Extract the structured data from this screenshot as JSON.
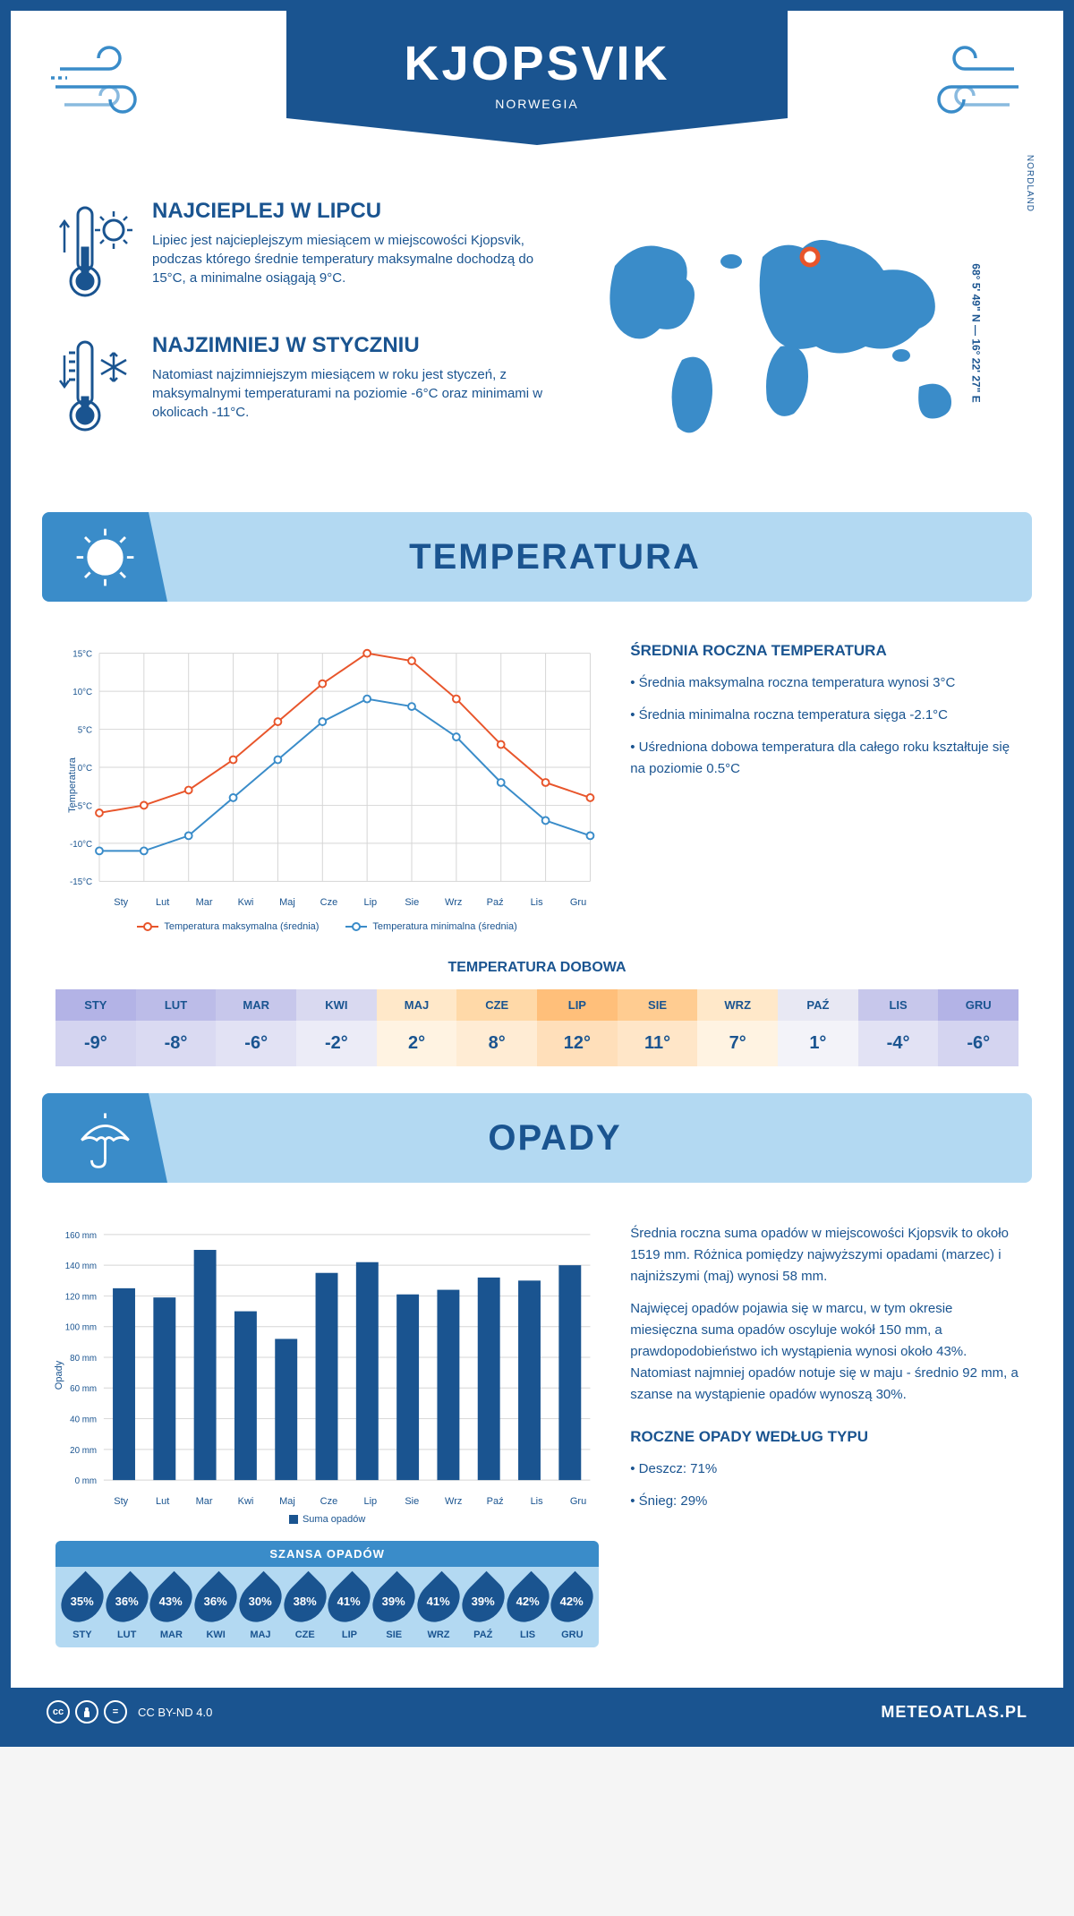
{
  "header": {
    "title": "KJOPSVIK",
    "country": "NORWEGIA",
    "coordinates": "68° 5' 49\" N — 16° 22' 27\" E",
    "region": "NORDLAND"
  },
  "facts": {
    "warm": {
      "title": "NAJCIEPLEJ W LIPCU",
      "text": "Lipiec jest najcieplejszym miesiącem w miejscowości Kjopsvik, podczas którego średnie temperatury maksymalne dochodzą do 15°C, a minimalne osiągają 9°C."
    },
    "cold": {
      "title": "NAJZIMNIEJ W STYCZNIU",
      "text": "Natomiast najzimniejszym miesiącem w roku jest styczeń, z maksymalnymi temperaturami na poziomie -6°C oraz minimami w okolicach -11°C."
    }
  },
  "sections": {
    "temperature": "TEMPERATURA",
    "precipitation": "OPADY"
  },
  "temp_chart": {
    "type": "line",
    "y_axis_label": "Temperatura",
    "months": [
      "Sty",
      "Lut",
      "Mar",
      "Kwi",
      "Maj",
      "Cze",
      "Lip",
      "Sie",
      "Wrz",
      "Paź",
      "Lis",
      "Gru"
    ],
    "max_series": [
      -6,
      -5,
      -3,
      1,
      6,
      11,
      15,
      14,
      9,
      3,
      -2,
      -4
    ],
    "min_series": [
      -11,
      -11,
      -9,
      -4,
      1,
      6,
      9,
      8,
      4,
      -2,
      -7,
      -9
    ],
    "ylim": [
      -15,
      15
    ],
    "ytick_step": 5,
    "max_color": "#e8552b",
    "min_color": "#3a8cc9",
    "grid_color": "#d5d5d5",
    "legend_max": "Temperatura maksymalna (średnia)",
    "legend_min": "Temperatura minimalna (średnia)"
  },
  "temp_summary": {
    "title": "ŚREDNIA ROCZNA TEMPERATURA",
    "items": [
      "Średnia maksymalna roczna temperatura wynosi 3°C",
      "Średnia minimalna roczna temperatura sięga -2.1°C",
      "Uśredniona dobowa temperatura dla całego roku kształtuje się na poziomie 0.5°C"
    ]
  },
  "daily_temp": {
    "title": "TEMPERATURA DOBOWA",
    "months": [
      "STY",
      "LUT",
      "MAR",
      "KWI",
      "MAJ",
      "CZE",
      "LIP",
      "SIE",
      "WRZ",
      "PAŹ",
      "LIS",
      "GRU"
    ],
    "values": [
      "-9°",
      "-8°",
      "-6°",
      "-2°",
      "2°",
      "8°",
      "12°",
      "11°",
      "7°",
      "1°",
      "-4°",
      "-6°"
    ],
    "header_colors": [
      "#b3b3e6",
      "#bcbce8",
      "#c7c7eb",
      "#d9d9f0",
      "#ffe8c9",
      "#ffd9a8",
      "#ffbf7a",
      "#ffcc91",
      "#ffe8c9",
      "#e8e8f3",
      "#c7c7eb",
      "#b3b3e6"
    ],
    "value_colors": [
      "#d4d4f0",
      "#dadaf2",
      "#e2e2f4",
      "#ececf7",
      "#fff3e2",
      "#ffecd4",
      "#ffdfba",
      "#ffe6c8",
      "#fff3e2",
      "#f3f3f9",
      "#e2e2f4",
      "#d4d4f0"
    ],
    "text_color": "#1a5490"
  },
  "precip_chart": {
    "type": "bar",
    "y_axis_label": "Opady",
    "months": [
      "Sty",
      "Lut",
      "Mar",
      "Kwi",
      "Maj",
      "Cze",
      "Lip",
      "Sie",
      "Wrz",
      "Paź",
      "Lis",
      "Gru"
    ],
    "values": [
      125,
      119,
      150,
      110,
      92,
      135,
      142,
      121,
      124,
      132,
      130,
      140
    ],
    "ylim": [
      0,
      160
    ],
    "ytick_step": 20,
    "bar_color": "#1a5490",
    "grid_color": "#d5d5d5",
    "legend": "Suma opadów"
  },
  "precip_text": {
    "p1": "Średnia roczna suma opadów w miejscowości Kjopsvik to około 1519 mm. Różnica pomiędzy najwyższymi opadami (marzec) i najniższymi (maj) wynosi 58 mm.",
    "p2": "Najwięcej opadów pojawia się w marcu, w tym okresie miesięczna suma opadów oscyluje wokół 150 mm, a prawdopodobieństwo ich wystąpienia wynosi około 43%. Natomiast najmniej opadów notuje się w maju - średnio 92 mm, a szanse na wystąpienie opadów wynoszą 30%."
  },
  "rain_chance": {
    "title": "SZANSA OPADÓW",
    "months": [
      "STY",
      "LUT",
      "MAR",
      "KWI",
      "MAJ",
      "CZE",
      "LIP",
      "SIE",
      "WRZ",
      "PAŹ",
      "LIS",
      "GRU"
    ],
    "values": [
      "35%",
      "36%",
      "43%",
      "36%",
      "30%",
      "38%",
      "41%",
      "39%",
      "41%",
      "39%",
      "42%",
      "42%"
    ]
  },
  "precip_type": {
    "title": "ROCZNE OPADY WEDŁUG TYPU",
    "items": [
      "Deszcz: 71%",
      "Śnieg: 29%"
    ]
  },
  "footer": {
    "license": "CC BY-ND 4.0",
    "site": "METEOATLAS.PL"
  },
  "colors": {
    "primary": "#1a5490",
    "light_blue": "#b3d9f2",
    "mid_blue": "#3a8cc9"
  }
}
